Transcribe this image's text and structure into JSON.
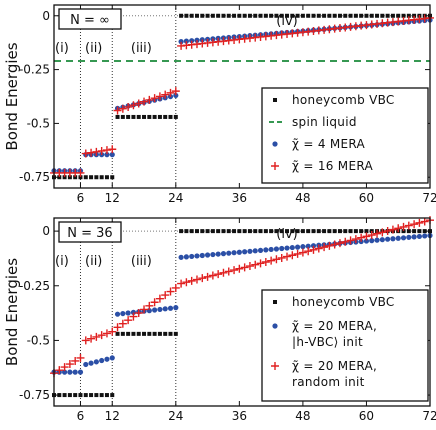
{
  "chart_data": [
    {
      "type": "scatter",
      "panel_label": "N = ∞",
      "ylabel": "Bond Energies",
      "xlim": [
        1,
        72
      ],
      "ylim": [
        -0.8,
        0.05
      ],
      "xticks": [
        6,
        12,
        24,
        36,
        48,
        60,
        72
      ],
      "xtick_labels": [
        "6",
        "12",
        "24",
        "36",
        "48",
        "60",
        "72"
      ],
      "yticks": [
        0,
        -0.25,
        -0.5,
        -0.75
      ],
      "ytick_labels": [
        "0",
        "-0.25",
        "-0.5",
        "-0.75"
      ],
      "region_labels": [
        "(i)",
        "(ii)",
        "(iii)",
        "(iv)"
      ],
      "region_label_x": [
        2.5,
        8.5,
        17.5,
        45
      ],
      "region_dividers_x": [
        6,
        12,
        24
      ],
      "reference_line": {
        "y": -0.21,
        "legend": "spin liquid",
        "color": "#1a8a3a",
        "style": "dashed"
      },
      "legend_position": "bottom-right",
      "series": [
        {
          "name": "honeycomb VBC",
          "marker": "square",
          "color": "#111111",
          "segments": [
            {
              "x_from": 1,
              "x_to": 12,
              "y": -0.75
            },
            {
              "x_from": 13,
              "x_to": 24,
              "y": -0.47
            },
            {
              "x_from": 25,
              "x_to": 72,
              "y": 0.0
            }
          ]
        },
        {
          "name": "χ̃ = 4 MERA",
          "marker": "circle",
          "color": "#2b4fa6",
          "segments": [
            {
              "x_from": 1,
              "x_to": 6,
              "y": -0.72
            },
            {
              "x_from": 7,
              "x_to": 12,
              "y": -0.645
            },
            {
              "x_from": 13,
              "x_to": 24,
              "y_from": -0.43,
              "y_to": -0.37
            },
            {
              "x_from": 25,
              "x_to": 72,
              "y_from": -0.12,
              "y_to": -0.02
            }
          ]
        },
        {
          "name": "χ̃ = 16 MERA",
          "marker": "plus",
          "color": "#e02020",
          "segments": [
            {
              "x_from": 1,
              "x_to": 6,
              "y": -0.73
            },
            {
              "x_from": 7,
              "x_to": 12,
              "y_from": -0.64,
              "y_to": -0.62
            },
            {
              "x_from": 13,
              "x_to": 24,
              "y_from": -0.44,
              "y_to": -0.35
            },
            {
              "x_from": 25,
              "x_to": 72,
              "y_from": -0.14,
              "y_to": -0.01
            }
          ]
        }
      ]
    },
    {
      "type": "scatter",
      "panel_label": "N = 36",
      "ylabel": "Bond Energies",
      "xlim": [
        1,
        72
      ],
      "ylim": [
        -0.8,
        0.06
      ],
      "xticks": [
        6,
        12,
        24,
        36,
        48,
        60,
        72
      ],
      "xtick_labels": [
        "6",
        "12",
        "24",
        "36",
        "48",
        "60",
        "72"
      ],
      "yticks": [
        0,
        -0.25,
        -0.5,
        -0.75
      ],
      "ytick_labels": [
        "0",
        "-0.25",
        "-0.5",
        "-0.75"
      ],
      "region_labels": [
        "(i)",
        "(ii)",
        "(iii)",
        "(iv)"
      ],
      "region_label_x": [
        2.5,
        8.5,
        17.5,
        45
      ],
      "region_dividers_x": [
        6,
        12,
        24
      ],
      "legend_position": "bottom-right",
      "series": [
        {
          "name": "honeycomb VBC",
          "marker": "square",
          "color": "#111111",
          "segments": [
            {
              "x_from": 1,
              "x_to": 12,
              "y": -0.75
            },
            {
              "x_from": 13,
              "x_to": 24,
              "y": -0.47
            },
            {
              "x_from": 25,
              "x_to": 72,
              "y": 0.0
            }
          ]
        },
        {
          "name": "χ̃ = 20 MERA, |h-VBC⟩ init",
          "legend_lines": [
            "χ̃ = 20 MERA,",
            "|h-VBC⟩ init"
          ],
          "marker": "circle",
          "color": "#2b4fa6",
          "segments": [
            {
              "x_from": 1,
              "x_to": 6,
              "y": -0.645
            },
            {
              "x_from": 7,
              "x_to": 12,
              "y_from": -0.61,
              "y_to": -0.58
            },
            {
              "x_from": 13,
              "x_to": 24,
              "y_from": -0.38,
              "y_to": -0.35
            },
            {
              "x_from": 25,
              "x_to": 72,
              "y_from": -0.12,
              "y_to": -0.02
            }
          ]
        },
        {
          "name": "χ̃ = 20 MERA, random init",
          "legend_lines": [
            "χ̃ = 20 MERA,",
            "random init"
          ],
          "marker": "plus",
          "color": "#e02020",
          "segments": [
            {
              "x_from": 1,
              "x_to": 6,
              "y_from": -0.65,
              "y_to": -0.58
            },
            {
              "x_from": 7,
              "x_to": 12,
              "y_from": -0.5,
              "y_to": -0.46
            },
            {
              "x_from": 13,
              "x_to": 24,
              "y_from": -0.44,
              "y_to": -0.26
            },
            {
              "x_from": 25,
              "x_to": 72,
              "y_from": -0.24,
              "y_to": 0.05
            }
          ]
        }
      ]
    }
  ]
}
